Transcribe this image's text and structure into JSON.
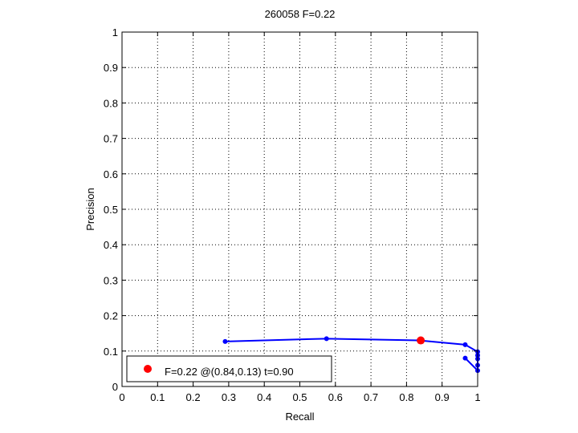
{
  "chart_data": {
    "type": "line",
    "title": "260058 F=0.22",
    "xlabel": "Recall",
    "ylabel": "Precision",
    "xlim": [
      0,
      1
    ],
    "ylim": [
      0,
      1
    ],
    "xticks": [
      "0",
      "0.1",
      "0.2",
      "0.3",
      "0.4",
      "0.5",
      "0.6",
      "0.7",
      "0.8",
      "0.9",
      "1"
    ],
    "yticks": [
      "0",
      "0.1",
      "0.2",
      "0.3",
      "0.4",
      "0.5",
      "0.6",
      "0.7",
      "0.8",
      "0.9",
      "1"
    ],
    "grid": true,
    "series": [
      {
        "color": "#0000ff",
        "x": [
          0.29,
          0.575,
          0.835,
          0.965,
          1.0,
          1.0,
          1.0,
          1.0,
          1.0,
          0.965
        ],
        "y": [
          0.127,
          0.135,
          0.13,
          0.118,
          0.098,
          0.088,
          0.078,
          0.06,
          0.045,
          0.08
        ]
      }
    ],
    "highlight": {
      "x": 0.84,
      "y": 0.13,
      "color": "#ff0000"
    },
    "legend": {
      "placement": "bottom-left",
      "label": "F=0.22 @(0.84,0.13) t=0.90"
    }
  }
}
